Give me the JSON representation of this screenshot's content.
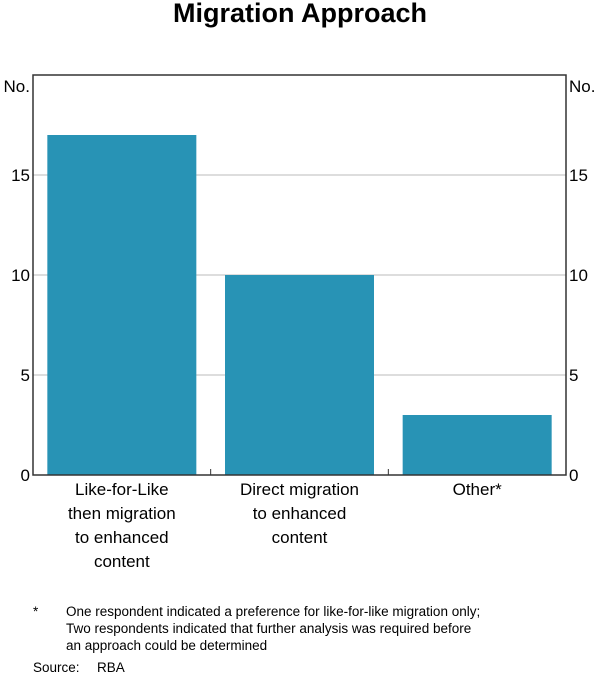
{
  "chart_data": {
    "type": "bar",
    "title": "Migration Approach",
    "ylabel_left": "No.",
    "ylabel_right": "No.",
    "categories": [
      [
        "Like-for-Like",
        "then migration",
        "to enhanced",
        "content"
      ],
      [
        "Direct migration",
        "to enhanced",
        "content"
      ],
      [
        "Other*"
      ]
    ],
    "values": [
      17,
      10,
      3
    ],
    "ylim": [
      0,
      20
    ],
    "yticks": [
      0,
      5,
      10,
      15
    ],
    "grid": true,
    "bar_color": "#2893B5"
  },
  "footnote": {
    "marker": "*",
    "lines": [
      "One respondent indicated a preference for like-for-like migration only;",
      "Two respondents indicated that further analysis was required before",
      "an approach could be determined"
    ]
  },
  "source": {
    "label": "Source:",
    "value": "RBA"
  }
}
